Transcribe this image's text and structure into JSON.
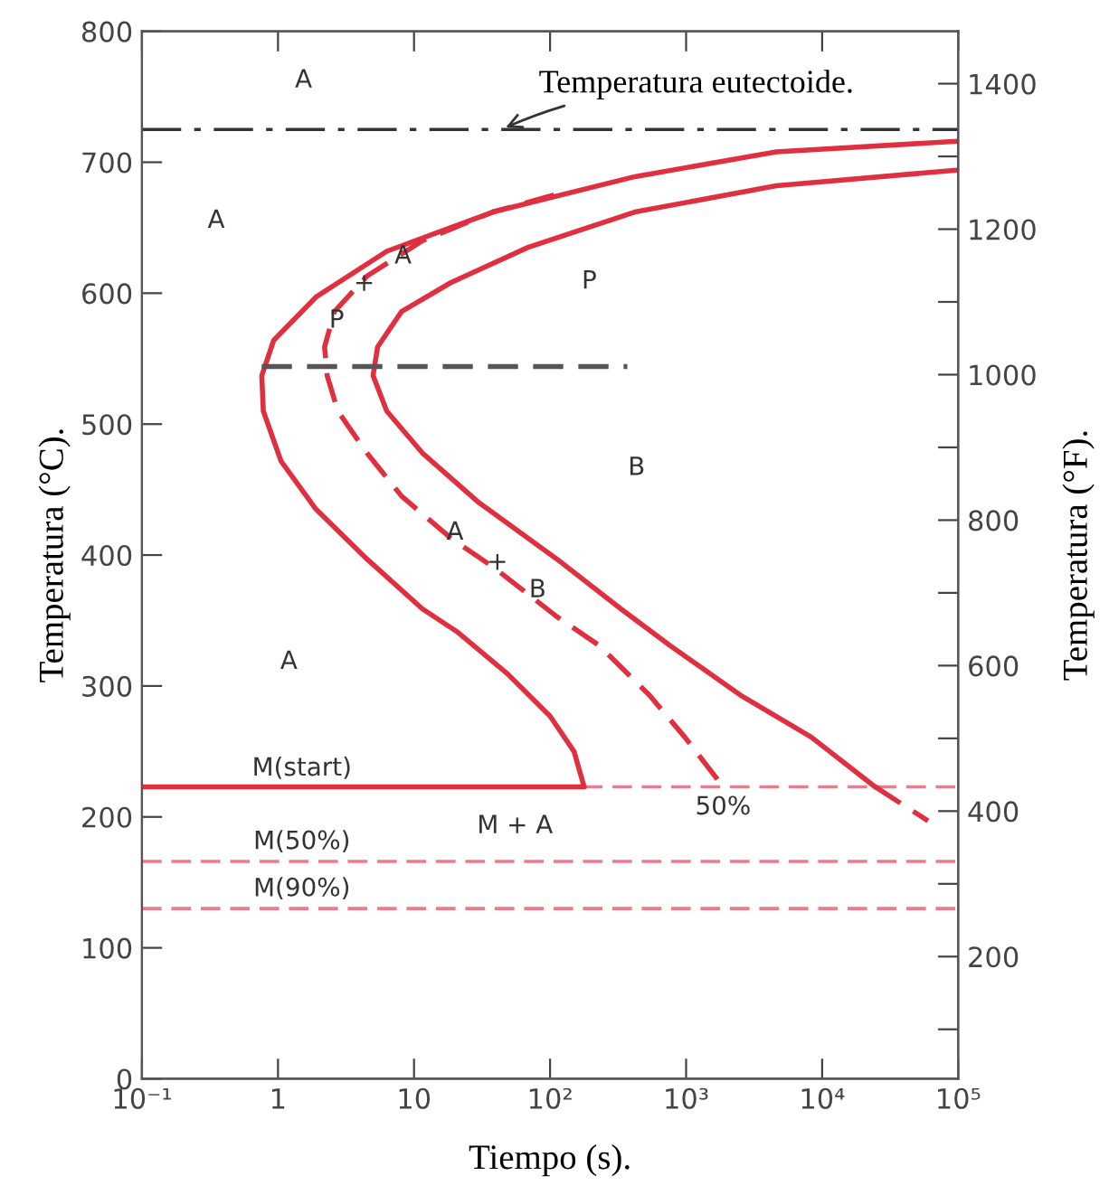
{
  "chart_data": {
    "type": "line",
    "xlabel": "Tiempo (s).",
    "ylabel": "Temperatura (°C).",
    "y2label": "Temperatura (°F).",
    "log": "x",
    "xlim": [
      0.1,
      100000
    ],
    "xticks": [
      {
        "value": 0.1,
        "label": "10⁻¹"
      },
      1,
      10,
      {
        "value": 100,
        "label": "10²"
      },
      {
        "value": 1000,
        "label": "10³"
      },
      {
        "value": 10000,
        "label": "10⁴"
      },
      {
        "value": 100000,
        "label": "10⁵"
      }
    ],
    "ylim": [
      0,
      800
    ],
    "yticks": [
      0,
      100,
      200,
      300,
      400,
      500,
      600,
      700,
      800
    ],
    "y2lim": [
      32,
      1472
    ],
    "y2ticks": [
      {
        "value": 100,
        "label": null
      },
      200,
      {
        "value": 300,
        "label": null
      },
      400,
      {
        "value": 500,
        "label": null
      },
      600,
      {
        "value": 700,
        "label": null
      },
      800,
      {
        "value": 900,
        "label": null
      },
      1000,
      {
        "value": 1100,
        "label": null
      },
      1200,
      {
        "value": 1300,
        "label": null
      },
      1400
    ],
    "series": [
      {
        "color": "#e03040",
        "line_style": "solid",
        "x": [
          98000,
          4600,
          420,
          38,
          6.3,
          1.9,
          0.93,
          0.76,
          0.78,
          1.05,
          1.9,
          4.5,
          11.5,
          21,
          49,
          100,
          150,
          178
        ],
        "values": [
          716,
          708,
          689,
          662,
          632,
          597,
          564,
          537,
          510,
          472,
          435,
          397,
          359,
          341,
          309,
          277,
          250,
          223
        ]
      },
      {
        "color": "#e03040",
        "line_style": "solid",
        "x": [
          0.1,
          178
        ],
        "values": [
          223,
          223
        ]
      },
      {
        "color": "#e03040",
        "line_style": "dashed",
        "x": [
          107,
          38,
          11.5,
          4.5,
          2.6,
          2.2,
          2.3,
          2.75,
          4.5,
          8.1,
          18.6,
          38,
          112,
          229,
          537,
          977,
          1780
        ],
        "values": [
          675,
          662,
          640,
          613,
          586,
          559,
          537,
          510,
          478,
          445,
          413,
          391,
          353,
          331,
          293,
          261,
          226
        ]
      },
      {
        "color": "#e03040",
        "line_style": "solid",
        "x": [
          98000,
          4600,
          420,
          69,
          18.6,
          8.1,
          5.4,
          5.0,
          6.3,
          11.5,
          30,
          112,
          331,
          759,
          2510,
          8300,
          24500
        ],
        "values": [
          694,
          682,
          662,
          635,
          608,
          586,
          559,
          537,
          510,
          478,
          440,
          397,
          359,
          331,
          293,
          261,
          223
        ]
      },
      {
        "color": "#e03040",
        "line_style": "dashed",
        "x": [
          24500,
          60000
        ],
        "values": [
          223,
          197
        ]
      },
      {
        "color": "#555555",
        "line_style": "dashed",
        "x": [
          0.76,
          370
        ],
        "values": [
          544,
          544
        ]
      }
    ],
    "ref_lines": [
      {
        "axis": "y",
        "value": 725,
        "label": "Temperatura eutectoide.",
        "color": "#333333",
        "line_style": "dashdot"
      },
      {
        "axis": "y",
        "value": 223,
        "color": "#f07a8a",
        "line_style": "dashed"
      },
      {
        "axis": "y",
        "value": 166,
        "color": "#f07a8a",
        "line_style": "dashed"
      },
      {
        "axis": "y",
        "value": 130,
        "color": "#f07a8a",
        "line_style": "dashed"
      }
    ],
    "annotations": [
      "A",
      "A",
      {
        "text": "A",
        "x": 8.3,
        "y": 628
      },
      {
        "text": "+",
        "x": 4.3,
        "y": 607
      },
      {
        "text": "P",
        "x": 2.7,
        "y": 579
      },
      "P",
      "B",
      {
        "text": "A",
        "x": 20,
        "y": 417
      },
      {
        "text": "+",
        "x": 41,
        "y": 394
      },
      {
        "text": "B",
        "x": 81,
        "y": 373
      },
      "A",
      "M(start)",
      "50%",
      "M + A",
      "M(50%)",
      "M(90%)"
    ]
  }
}
